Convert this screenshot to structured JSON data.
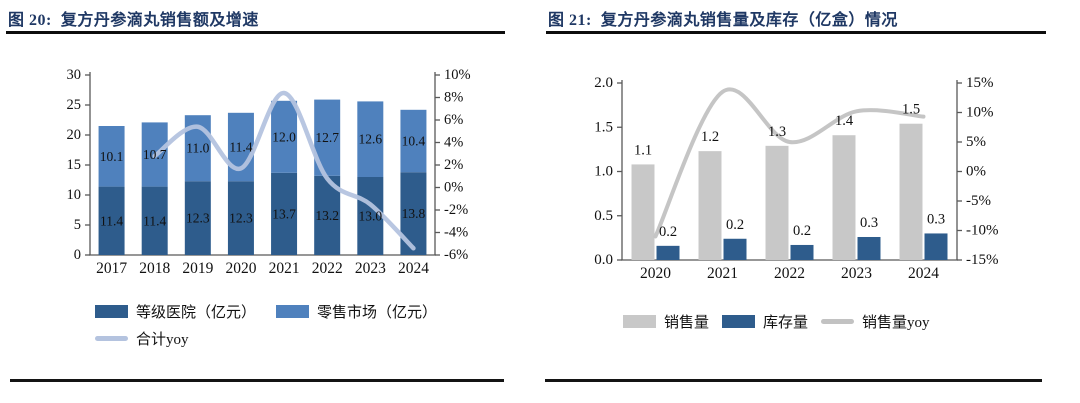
{
  "page_background": "#ffffff",
  "accent_colors": {
    "title_navy": "#1F3864",
    "dark_blue": "#2E5C8C",
    "light_blue": "#4F81BD",
    "periwinkle_line": "#B4C3DF",
    "grey_bar": "#C8C8C8",
    "grey_line": "#C2C2C2",
    "rule_black": "#141414"
  },
  "panels": {
    "left": {
      "title": "图 20:  复方丹参滴丸销售额及增速",
      "legend": [
        {
          "label": "等级医院（亿元）",
          "swatch": "bar",
          "color": "#2E5C8C"
        },
        {
          "label": "零售市场（亿元）",
          "swatch": "bar",
          "color": "#4F81BD"
        },
        {
          "label": "合计yoy",
          "swatch": "line",
          "color": "#B4C3DF"
        }
      ]
    },
    "right": {
      "title": "图 21:  复方丹参滴丸销售量及库存（亿盒）情况",
      "legend": [
        {
          "label": "销售量",
          "swatch": "bar",
          "color": "#C8C8C8"
        },
        {
          "label": "库存量",
          "swatch": "bar",
          "color": "#2E5C8C"
        },
        {
          "label": "销售量yoy",
          "swatch": "line",
          "color": "#C2C2C2"
        }
      ]
    }
  },
  "chart_data": [
    {
      "type": "bar",
      "subtype": "stacked-bar-with-line",
      "title": "复方丹参滴丸销售额及增速",
      "categories": [
        "2017",
        "2018",
        "2019",
        "2020",
        "2021",
        "2022",
        "2023",
        "2024"
      ],
      "series": [
        {
          "name": "等级医院（亿元）",
          "type": "bar",
          "color": "#2E5C8C",
          "values": [
            11.4,
            11.4,
            12.3,
            12.3,
            13.7,
            13.2,
            13.0,
            13.8
          ],
          "labels": [
            "11.4",
            "11.4",
            "12.3",
            "12.3",
            "13.7",
            "13.2",
            "13.0",
            "13.8"
          ]
        },
        {
          "name": "零售市场（亿元）",
          "type": "bar",
          "color": "#4F81BD",
          "values": [
            10.1,
            10.7,
            11.0,
            11.4,
            12.0,
            12.7,
            12.6,
            10.4
          ],
          "labels": [
            "10.1",
            "10.7",
            "11.0",
            "11.4",
            "12.0",
            "12.7",
            "12.6",
            "10.4"
          ]
        },
        {
          "name": "合计yoy",
          "type": "line",
          "axis": "right",
          "color": "#B4C3DF",
          "values": [
            null,
            2.8,
            5.4,
            1.7,
            8.4,
            0.8,
            -1.5,
            -5.4
          ]
        }
      ],
      "left_axis": {
        "min": 0,
        "max": 30,
        "tick_labels": [
          "30",
          "25",
          "20",
          "15",
          "10",
          "5",
          "0"
        ]
      },
      "right_axis": {
        "min": -6,
        "max": 10,
        "tick_labels": [
          "10%",
          "8%",
          "6%",
          "4%",
          "2%",
          "0%",
          "-2%",
          "-4%",
          "-6%"
        ]
      },
      "grid": false,
      "legend_position": "bottom"
    },
    {
      "type": "bar",
      "subtype": "grouped-bar-with-line",
      "title": "复方丹参滴丸销售量及库存（亿盒）情况",
      "categories": [
        "2020",
        "2021",
        "2022",
        "2023",
        "2024"
      ],
      "series": [
        {
          "name": "销售量",
          "type": "bar",
          "color": "#C8C8C8",
          "values": [
            1.08,
            1.23,
            1.29,
            1.41,
            1.54
          ],
          "labels": [
            "1.1",
            "1.2",
            "1.3",
            "1.4",
            "1.5"
          ]
        },
        {
          "name": "库存量",
          "type": "bar",
          "color": "#2E5C8C",
          "values": [
            0.16,
            0.24,
            0.17,
            0.26,
            0.3
          ],
          "labels": [
            "0.2",
            "0.2",
            "0.2",
            "0.3",
            "0.3"
          ]
        },
        {
          "name": "销售量yoy",
          "type": "line",
          "axis": "right",
          "color": "#C2C2C2",
          "values": [
            -11,
            13.5,
            5,
            10.2,
            9.3
          ]
        }
      ],
      "left_axis": {
        "min": 0,
        "max": 2,
        "tick_labels": [
          "2.0",
          "1.5",
          "1.0",
          "0.5",
          "0.0"
        ]
      },
      "right_axis": {
        "min": -15,
        "max": 15,
        "tick_labels": [
          "15%",
          "10%",
          "5%",
          "0%",
          "-5%",
          "-10%",
          "-15%"
        ]
      },
      "grid": false,
      "legend_position": "bottom"
    }
  ]
}
